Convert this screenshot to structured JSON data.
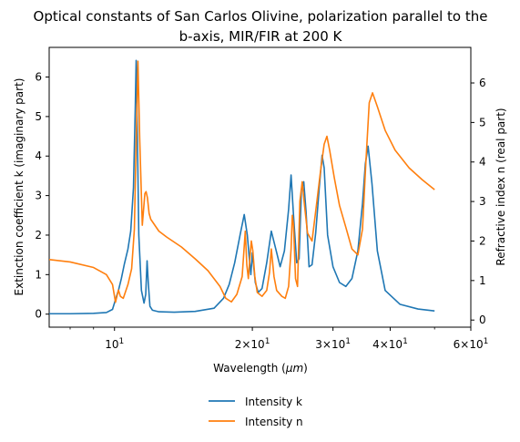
{
  "chart_data": {
    "type": "line",
    "title_lines": [
      "Optical constants of San Carlos Olivine, polarization parallel to the",
      "b-axis, MIR/FIR at 200 K"
    ],
    "xlabel": "Wavelength (μm)",
    "ylabel_left": "Extinction coefficient k (imaginary part)",
    "ylabel_right": "Refractive index n (real part)",
    "xscale": "log",
    "xlim": [
      7.2,
      60
    ],
    "ylim_left": [
      -0.33,
      6.75
    ],
    "ylim_right": [
      -0.18,
      6.9
    ],
    "x_major_ticks": [
      {
        "value": 10,
        "label": "10^1"
      },
      {
        "value": 20,
        "label": "2×10^1"
      },
      {
        "value": 30,
        "label": "3×10^1"
      },
      {
        "value": 40,
        "label": "4×10^1"
      },
      {
        "value": 60,
        "label": "6×10^1"
      }
    ],
    "x_minor_ticks": [
      8,
      9,
      50
    ],
    "y_left_ticks": [
      0,
      1,
      2,
      3,
      4,
      5,
      6
    ],
    "y_right_ticks": [
      0,
      1,
      2,
      3,
      4,
      5,
      6
    ],
    "legend_position": "below",
    "grid": false,
    "series": [
      {
        "name": "Intensity k",
        "color": "#1f77b4",
        "axis": "left",
        "x": [
          7.2,
          8.0,
          9.0,
          9.6,
          9.9,
          10.1,
          10.2,
          10.35,
          10.5,
          10.7,
          10.85,
          11.0,
          11.1,
          11.15,
          11.22,
          11.3,
          11.45,
          11.6,
          11.7,
          11.78,
          11.85,
          11.95,
          12.1,
          12.5,
          13.5,
          15.0,
          16.5,
          17.3,
          17.8,
          18.3,
          18.8,
          19.2,
          19.5,
          19.7,
          19.85,
          20.0,
          20.3,
          20.6,
          21.0,
          21.5,
          22.0,
          22.5,
          23.0,
          23.5,
          24.0,
          24.3,
          24.6,
          25.0,
          25.3,
          25.6,
          25.9,
          26.2,
          26.6,
          27.0,
          27.5,
          28.0,
          28.4,
          28.7,
          29.2,
          30.0,
          31.0,
          32.0,
          33.0,
          34.0,
          34.8,
          35.3,
          35.8,
          36.5,
          37.5,
          39.0,
          42.0,
          46.0,
          50.0
        ],
        "values": [
          0.01,
          0.01,
          0.02,
          0.04,
          0.12,
          0.45,
          0.6,
          0.9,
          1.25,
          1.65,
          2.1,
          3.2,
          5.2,
          6.42,
          4.5,
          2.0,
          0.6,
          0.28,
          0.5,
          1.35,
          0.8,
          0.2,
          0.1,
          0.06,
          0.05,
          0.07,
          0.15,
          0.4,
          0.75,
          1.3,
          2.0,
          2.52,
          2.0,
          1.4,
          1.0,
          1.55,
          0.8,
          0.55,
          0.65,
          1.3,
          2.1,
          1.65,
          1.2,
          1.6,
          2.65,
          3.52,
          2.5,
          1.3,
          1.4,
          3.15,
          3.35,
          2.6,
          1.2,
          1.25,
          2.05,
          3.2,
          4.02,
          3.7,
          2.0,
          1.2,
          0.8,
          0.7,
          0.9,
          1.6,
          2.8,
          3.8,
          4.25,
          3.3,
          1.6,
          0.6,
          0.25,
          0.13,
          0.08
        ]
      },
      {
        "name": "Intensity n",
        "color": "#ff7f0e",
        "axis": "right",
        "x": [
          7.2,
          8.0,
          9.0,
          9.6,
          9.9,
          10.05,
          10.2,
          10.3,
          10.45,
          10.7,
          10.9,
          11.05,
          11.15,
          11.25,
          11.35,
          11.5,
          11.65,
          11.72,
          11.8,
          11.9,
          12.0,
          12.5,
          13.0,
          14.0,
          15.0,
          16.0,
          17.0,
          17.5,
          18.0,
          18.5,
          19.0,
          19.3,
          19.45,
          19.6,
          19.75,
          19.9,
          20.05,
          20.25,
          20.5,
          21.0,
          21.5,
          21.8,
          22.0,
          22.3,
          22.6,
          23.2,
          23.6,
          24.0,
          24.3,
          24.45,
          24.6,
          24.85,
          25.1,
          25.4,
          25.7,
          26.0,
          26.4,
          27.0,
          27.6,
          28.2,
          28.7,
          29.1,
          29.5,
          30.2,
          31.0,
          32.0,
          33.0,
          34.0,
          34.8,
          35.4,
          36.0,
          36.6,
          37.5,
          39.0,
          41.0,
          44.0,
          47.0,
          50.0
        ],
        "values": [
          1.53,
          1.47,
          1.33,
          1.15,
          0.9,
          0.45,
          0.76,
          0.6,
          0.55,
          0.9,
          1.3,
          2.3,
          4.5,
          6.55,
          4.6,
          2.4,
          3.2,
          3.25,
          3.1,
          2.7,
          2.55,
          2.25,
          2.1,
          1.85,
          1.55,
          1.25,
          0.85,
          0.55,
          0.46,
          0.65,
          1.1,
          2.25,
          1.4,
          1.05,
          1.55,
          2.0,
          1.75,
          1.1,
          0.7,
          0.6,
          0.75,
          1.2,
          1.8,
          1.1,
          0.75,
          0.6,
          0.55,
          0.85,
          1.8,
          2.65,
          2.4,
          1.05,
          0.85,
          3.0,
          3.5,
          2.9,
          2.2,
          2.0,
          2.9,
          3.8,
          4.45,
          4.65,
          4.3,
          3.6,
          2.9,
          2.35,
          1.8,
          1.65,
          2.3,
          4.0,
          5.5,
          5.75,
          5.4,
          4.8,
          4.3,
          3.85,
          3.55,
          3.3
        ]
      }
    ]
  }
}
